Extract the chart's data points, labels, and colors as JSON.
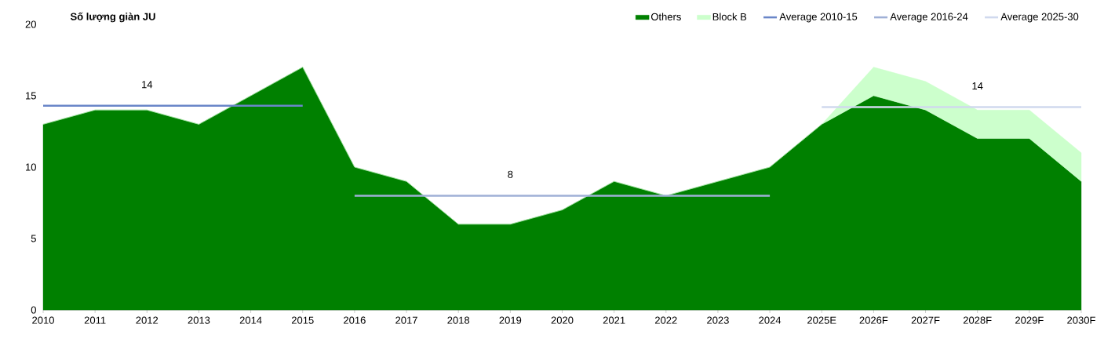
{
  "chart_data": {
    "type": "area",
    "title": "Số lượng giàn JU",
    "categories": [
      "2010",
      "2011",
      "2012",
      "2013",
      "2014",
      "2015",
      "2016",
      "2017",
      "2018",
      "2019",
      "2020",
      "2021",
      "2022",
      "2023",
      "2024",
      "2025E",
      "2026F",
      "2027F",
      "2028F",
      "2029F",
      "2030F"
    ],
    "stacked": true,
    "series": [
      {
        "name": "Others",
        "color": "#008000",
        "values": [
          13,
          14,
          14,
          13,
          15,
          17,
          10,
          9,
          6,
          6,
          7,
          9,
          8,
          9,
          10,
          13,
          15,
          14,
          12,
          12,
          9
        ]
      },
      {
        "name": "Block B",
        "color": "#ccffcc",
        "values": [
          0,
          0,
          0,
          0,
          0,
          0,
          0,
          0,
          0,
          0,
          0,
          0,
          0,
          0,
          0,
          0,
          2,
          2,
          2,
          2,
          2
        ]
      },
      {
        "name": "Average 2010-15",
        "type": "line",
        "color": "#6a86c8",
        "values": [
          14.3,
          14.3,
          14.3,
          14.3,
          14.3,
          14.3,
          null,
          null,
          null,
          null,
          null,
          null,
          null,
          null,
          null,
          null,
          null,
          null,
          null,
          null,
          null
        ]
      },
      {
        "name": "Average 2016-24",
        "type": "line",
        "color": "#9fb0d6",
        "values": [
          null,
          null,
          null,
          null,
          null,
          null,
          8,
          8,
          8,
          8,
          8,
          8,
          8,
          8,
          8,
          null,
          null,
          null,
          null,
          null,
          null
        ]
      },
      {
        "name": "Average 2025-30",
        "type": "line",
        "color": "#d0d9ee",
        "values": [
          null,
          null,
          null,
          null,
          null,
          null,
          null,
          null,
          null,
          null,
          null,
          null,
          null,
          null,
          null,
          14.2,
          14.2,
          14.2,
          14.2,
          14.2,
          14.2
        ]
      }
    ],
    "annotations": [
      {
        "text": "14",
        "x": "2012",
        "y": 14.3
      },
      {
        "text": "8",
        "x": "2019",
        "y": 8
      },
      {
        "text": "14",
        "x": "2028F",
        "y": 14.2
      }
    ],
    "ylim": [
      0,
      20
    ],
    "yticks": [
      0,
      5,
      10,
      15,
      20
    ],
    "grid": false,
    "legend": "top"
  }
}
